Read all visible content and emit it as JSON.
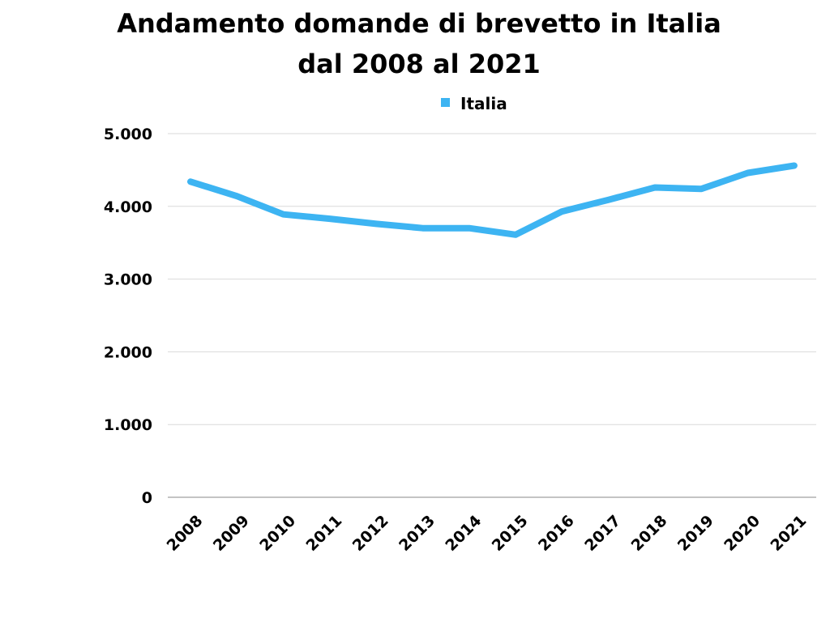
{
  "chart_data": {
    "type": "line",
    "title_lines": [
      "Andamento domande di brevetto in Italia",
      "dal 2008 al 2021"
    ],
    "categories": [
      "2008",
      "2009",
      "2010",
      "2011",
      "2012",
      "2013",
      "2014",
      "2015",
      "2016",
      "2017",
      "2018",
      "2019",
      "2020",
      "2021"
    ],
    "series": [
      {
        "name": "Italia",
        "color": "#3db4f2",
        "values": [
          4340,
          4140,
          3890,
          3830,
          3760,
          3700,
          3700,
          3610,
          3930,
          4090,
          4260,
          4240,
          4460,
          4560
        ]
      }
    ],
    "y_ticks": [
      {
        "value": 0,
        "label": "0"
      },
      {
        "value": 1000,
        "label": "1.000"
      },
      {
        "value": 2000,
        "label": "2.000"
      },
      {
        "value": 3000,
        "label": "3.000"
      },
      {
        "value": 4000,
        "label": "4.000"
      },
      {
        "value": 5000,
        "label": "5.000"
      }
    ],
    "ylim": [
      0,
      5000
    ],
    "xlabel": "",
    "ylabel": "",
    "grid": "horizontal",
    "legend_position": "top-center",
    "gridline_color": "#d9d9d9",
    "axis_color": "#a0a0a0"
  }
}
